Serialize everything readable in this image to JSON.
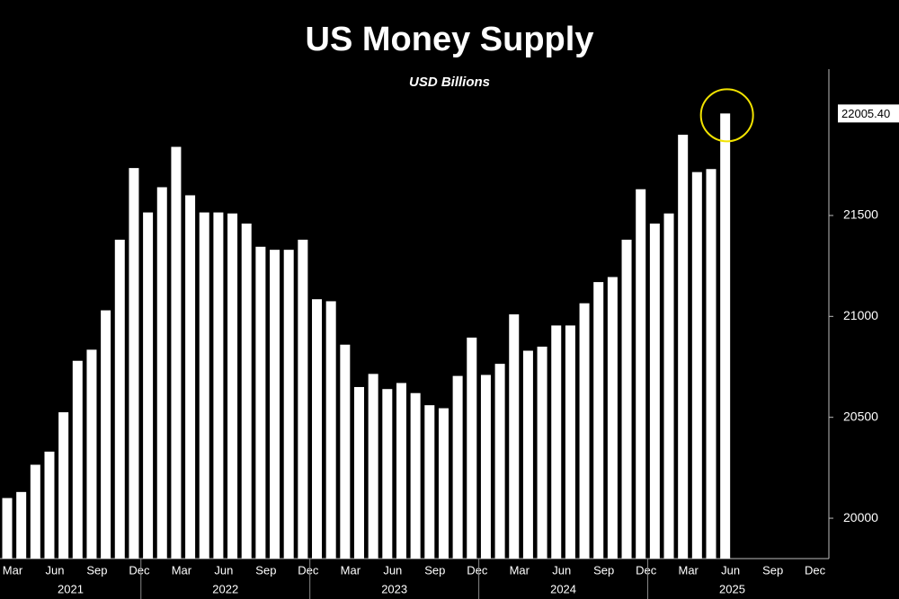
{
  "chart_data": {
    "type": "bar",
    "title": "US Money Supply",
    "subtitle": "USD Billions",
    "categories": [
      "Mar",
      null,
      null,
      "Jun",
      null,
      null,
      "Sep",
      null,
      null,
      "Dec",
      null,
      null,
      "Mar",
      null,
      null,
      "Jun",
      null,
      null,
      "Sep",
      null,
      null,
      "Dec",
      null,
      null,
      "Mar",
      null,
      null,
      "Jun",
      null,
      null,
      "Sep",
      null,
      null,
      "Dec",
      null,
      null,
      "Mar",
      null,
      null,
      "Jun",
      null,
      null,
      "Sep",
      null,
      null,
      "Dec",
      null,
      null,
      "Mar",
      null,
      null,
      "Jun",
      null,
      null,
      "Sep",
      null,
      null,
      "Dec"
    ],
    "years": [
      "2021",
      "2022",
      "2023",
      "2024",
      "2025"
    ],
    "values": [
      20100,
      20130,
      20265,
      20330,
      20525,
      20780,
      20835,
      21030,
      21380,
      21735,
      21515,
      21640,
      21840,
      21600,
      21515,
      21515,
      21510,
      21460,
      21345,
      21330,
      21330,
      21380,
      21085,
      21075,
      20860,
      20650,
      20715,
      20640,
      20670,
      20620,
      20560,
      20545,
      20705,
      20895,
      20710,
      20765,
      21010,
      20830,
      20850,
      20955,
      20955,
      21065,
      21170,
      21195,
      21380,
      21630,
      21460,
      21510,
      21900,
      21715,
      21730,
      22005.4,
      null,
      null,
      null,
      null,
      null,
      null
    ],
    "value_labels": [
      null,
      null,
      null,
      null,
      null,
      null,
      null,
      null,
      null,
      null,
      null,
      null,
      null,
      null,
      null,
      null,
      null,
      null,
      null,
      null,
      null,
      null,
      null,
      null,
      null,
      null,
      null,
      null,
      null,
      null,
      null,
      null,
      null,
      null,
      null,
      null,
      null,
      null,
      null,
      null,
      null,
      null,
      null,
      null,
      null,
      null,
      null,
      null,
      null,
      null,
      null,
      "22005.40",
      null,
      null,
      null,
      null,
      null,
      null
    ],
    "color": "#ffffff",
    "highlight_color": "#f2e300",
    "ylim": [
      19800,
      22225
    ],
    "yticks": [
      20000,
      20500,
      21000,
      21500
    ]
  }
}
